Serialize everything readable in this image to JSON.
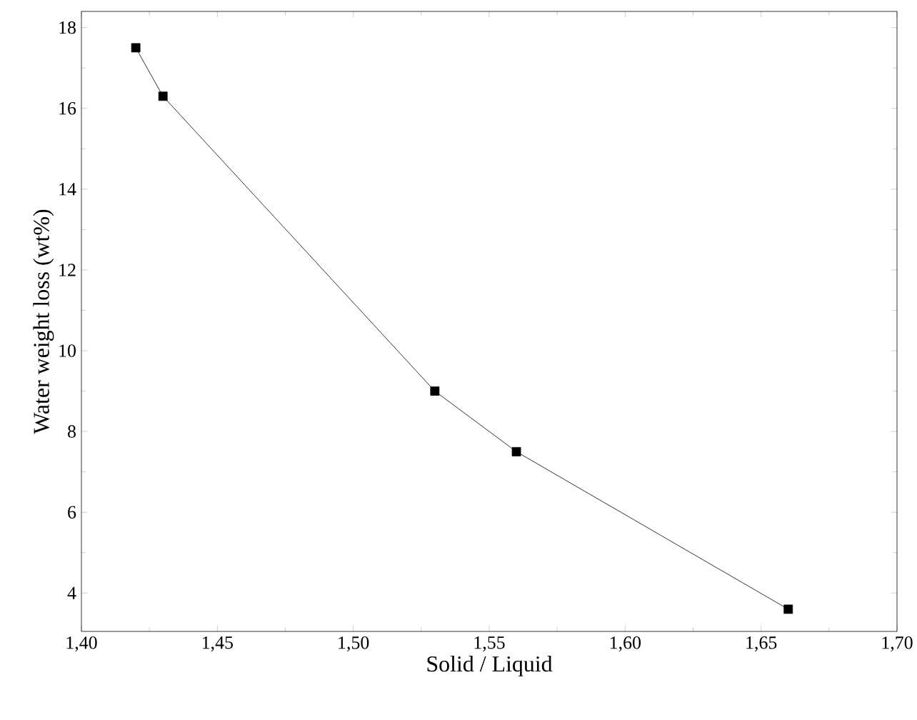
{
  "chart_data": {
    "type": "line",
    "xlabel": "Solid / Liquid",
    "ylabel": "Water weight loss (wt%)",
    "x": [
      1.42,
      1.43,
      1.53,
      1.56,
      1.66
    ],
    "values": [
      17.5,
      16.3,
      9.0,
      7.5,
      3.6
    ],
    "color": "#000000",
    "marker": "square",
    "line_style": "solid",
    "grid": false,
    "xlim": [
      1.4,
      1.7
    ],
    "ylim": [
      3.05,
      18.4
    ],
    "xticks": [
      {
        "value": 1.4,
        "label": "1,40"
      },
      {
        "value": 1.45,
        "label": "1,45"
      },
      {
        "value": 1.5,
        "label": "1,50"
      },
      {
        "value": 1.55,
        "label": "1,55"
      },
      {
        "value": 1.6,
        "label": "1,60"
      },
      {
        "value": 1.65,
        "label": "1,65"
      },
      {
        "value": 1.7,
        "label": "1,70"
      }
    ],
    "yticks": [
      4,
      6,
      8,
      10,
      12,
      14,
      16,
      18
    ]
  }
}
